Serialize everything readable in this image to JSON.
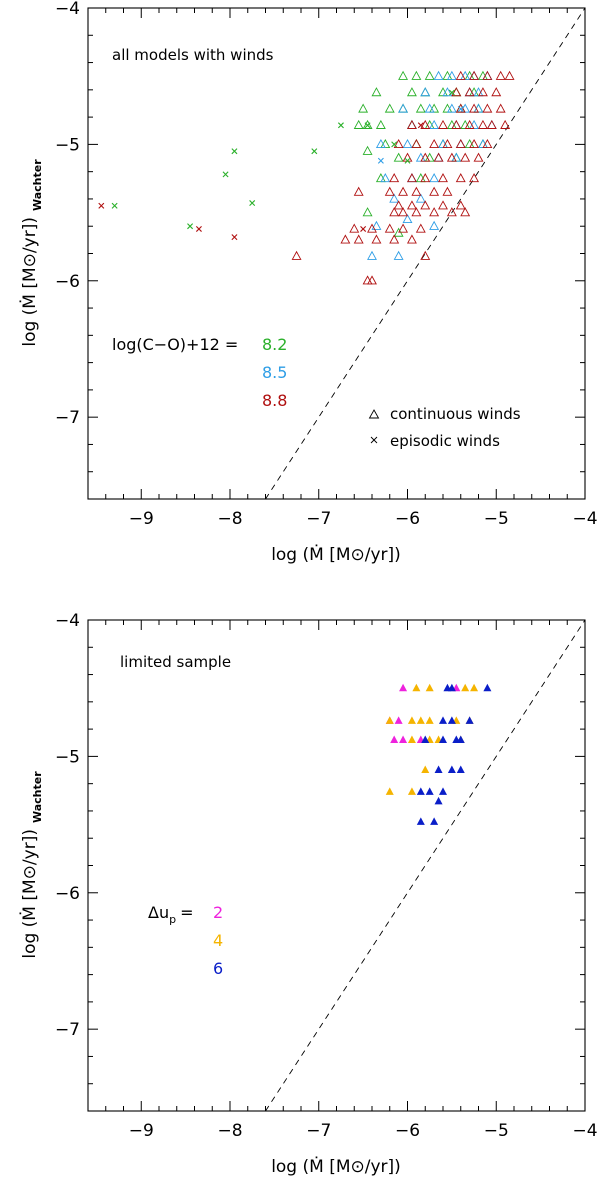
{
  "chart_data": [
    {
      "type": "scatter",
      "title": "all models with winds",
      "xlabel": "log (Ṁ [M⊙/yr])",
      "ylabel_main": "log (Ṁ [M⊙/yr])",
      "ylabel_sub": "Wachter",
      "xlim": [
        -9.6,
        -4
      ],
      "ylim": [
        -7.6,
        -4
      ],
      "xticks": [
        -9,
        -8,
        -7,
        -6,
        -5,
        -4
      ],
      "xtick_labels": [
        "−9",
        "−8",
        "−7",
        "−6",
        "−5",
        "−4"
      ],
      "yticks": [
        -7,
        -6,
        -5,
        -4
      ],
      "ytick_labels": [
        "−7",
        "−6",
        "−5",
        "−4"
      ],
      "diagonal": [
        [
          -7.6,
          -7.6
        ],
        [
          -4,
          -4
        ]
      ],
      "colors": {
        "8.2": "#2ab02a",
        "8.5": "#2f9ee6",
        "8.8": "#b01010"
      },
      "legend_title": "log(C−O)+12 =",
      "legend_values": [
        "8.2",
        "8.5",
        "8.8"
      ],
      "marker_legend": [
        "continuous winds",
        "episodic winds"
      ],
      "series": [
        {
          "name": "8.2",
          "marker": "open-triangle",
          "x": [
            -6.05,
            -5.9,
            -5.75,
            -5.55,
            -5.3,
            -5.15,
            -6.35,
            -5.95,
            -5.8,
            -5.6,
            -5.45,
            -5.25,
            -6.5,
            -6.2,
            -6.05,
            -5.85,
            -5.7,
            -5.55,
            -5.4,
            -5.2,
            -6.45,
            -6.3,
            -5.95,
            -5.75,
            -5.5,
            -5.35,
            -6.55,
            -6.25,
            -5.9,
            -5.6,
            -5.3,
            -5.15,
            -6.45,
            -6.1,
            -5.75,
            -5.45,
            -6.3,
            -5.85,
            -6.45,
            -6.1
          ],
          "y": [
            -4.5,
            -4.5,
            -4.5,
            -4.5,
            -4.5,
            -4.5,
            -4.62,
            -4.62,
            -4.62,
            -4.62,
            -4.62,
            -4.62,
            -4.74,
            -4.74,
            -4.74,
            -4.74,
            -4.74,
            -4.74,
            -4.74,
            -4.74,
            -4.86,
            -4.86,
            -4.86,
            -4.86,
            -4.86,
            -4.86,
            -4.86,
            -5.0,
            -5.0,
            -5.0,
            -5.0,
            -5.0,
            -5.05,
            -5.1,
            -5.1,
            -5.1,
            -5.25,
            -5.25,
            -5.5,
            -5.65
          ]
        },
        {
          "name": "8.5",
          "marker": "open-triangle",
          "x": [
            -5.65,
            -5.5,
            -5.35,
            -5.25,
            -5.1,
            -5.8,
            -5.55,
            -5.3,
            -5.2,
            -6.05,
            -5.75,
            -5.5,
            -5.35,
            -5.2,
            -5.95,
            -5.7,
            -5.45,
            -5.25,
            -5.05,
            -6.3,
            -6.0,
            -5.6,
            -5.4,
            -5.15,
            -5.85,
            -5.65,
            -5.45,
            -6.25,
            -5.95,
            -5.7,
            -6.15,
            -5.85,
            -6.0,
            -6.35,
            -5.7,
            -6.4,
            -6.1
          ],
          "y": [
            -4.5,
            -4.5,
            -4.5,
            -4.5,
            -4.5,
            -4.62,
            -4.62,
            -4.62,
            -4.62,
            -4.74,
            -4.74,
            -4.74,
            -4.74,
            -4.74,
            -4.86,
            -4.86,
            -4.86,
            -4.86,
            -4.86,
            -5.0,
            -5.0,
            -5.0,
            -5.0,
            -5.0,
            -5.1,
            -5.1,
            -5.1,
            -5.25,
            -5.25,
            -5.25,
            -5.4,
            -5.4,
            -5.55,
            -5.6,
            -5.6,
            -5.82,
            -5.82
          ]
        },
        {
          "name": "8.8",
          "marker": "open-triangle",
          "x": [
            -5.4,
            -5.25,
            -5.1,
            -4.95,
            -4.85,
            -5.45,
            -5.3,
            -5.15,
            -5.0,
            -5.4,
            -5.25,
            -5.1,
            -4.95,
            -5.95,
            -5.8,
            -5.6,
            -5.45,
            -5.3,
            -5.15,
            -5.05,
            -4.9,
            -6.1,
            -5.9,
            -5.7,
            -5.55,
            -5.4,
            -5.25,
            -5.1,
            -6.0,
            -5.8,
            -5.65,
            -5.5,
            -5.35,
            -5.2,
            -6.15,
            -5.95,
            -5.8,
            -5.6,
            -5.4,
            -5.25,
            -6.2,
            -6.05,
            -5.9,
            -5.7,
            -5.55,
            -6.55,
            -6.1,
            -5.95,
            -5.8,
            -5.6,
            -5.4,
            -6.15,
            -6.05,
            -5.9,
            -5.7,
            -5.5,
            -5.35,
            -6.6,
            -6.4,
            -6.2,
            -6.05,
            -5.85,
            -6.7,
            -6.55,
            -6.35,
            -6.15,
            -5.95,
            -5.8,
            -7.25,
            -6.45,
            -6.4
          ],
          "y": [
            -4.5,
            -4.5,
            -4.5,
            -4.5,
            -4.5,
            -4.62,
            -4.62,
            -4.62,
            -4.62,
            -4.74,
            -4.74,
            -4.74,
            -4.74,
            -4.86,
            -4.86,
            -4.86,
            -4.86,
            -4.86,
            -4.86,
            -4.86,
            -4.86,
            -5.0,
            -5.0,
            -5.0,
            -5.0,
            -5.0,
            -5.0,
            -5.0,
            -5.1,
            -5.1,
            -5.1,
            -5.1,
            -5.1,
            -5.1,
            -5.25,
            -5.25,
            -5.25,
            -5.25,
            -5.25,
            -5.25,
            -5.35,
            -5.35,
            -5.35,
            -5.35,
            -5.35,
            -5.35,
            -5.45,
            -5.45,
            -5.45,
            -5.45,
            -5.45,
            -5.5,
            -5.5,
            -5.5,
            -5.5,
            -5.5,
            -5.5,
            -5.62,
            -5.62,
            -5.62,
            -5.62,
            -5.62,
            -5.7,
            -5.7,
            -5.7,
            -5.7,
            -5.7,
            -5.82,
            -5.82,
            -6.0,
            -6.0
          ]
        },
        {
          "name": "8.2 episodic",
          "marker": "cross",
          "x": [
            -9.3,
            -8.45,
            -7.95,
            -8.05,
            -7.75,
            -7.05,
            -6.75,
            -6.15,
            -5.5,
            -6.0,
            -6.45
          ],
          "y": [
            -5.45,
            -5.6,
            -5.05,
            -5.22,
            -5.43,
            -5.05,
            -4.86,
            -5.0,
            -4.62,
            -5.12,
            -4.86
          ]
        },
        {
          "name": "8.5 episodic",
          "marker": "cross",
          "x": [
            -5.4,
            -6.3
          ],
          "y": [
            -4.74,
            -5.12
          ]
        },
        {
          "name": "8.8 episodic",
          "marker": "cross",
          "x": [
            -9.45,
            -8.35,
            -7.95,
            -6.5,
            -5.85
          ],
          "y": [
            -5.45,
            -5.62,
            -5.68,
            -5.62,
            -4.86
          ]
        }
      ]
    },
    {
      "type": "scatter",
      "title": "limited sample",
      "xlabel": "log (Ṁ [M⊙/yr])",
      "ylabel_main": "log (Ṁ [M⊙/yr])",
      "ylabel_sub": "Wachter",
      "xlim": [
        -9.6,
        -4
      ],
      "ylim": [
        -7.6,
        -4
      ],
      "xticks": [
        -9,
        -8,
        -7,
        -6,
        -5,
        -4
      ],
      "xtick_labels": [
        "−9",
        "−8",
        "−7",
        "−6",
        "−5",
        "−4"
      ],
      "yticks": [
        -7,
        -6,
        -5,
        -4
      ],
      "ytick_labels": [
        "−7",
        "−6",
        "−5",
        "−4"
      ],
      "diagonal": [
        [
          -7.6,
          -7.6
        ],
        [
          -4,
          -4
        ]
      ],
      "colors": {
        "2": "#ee22dd",
        "4": "#f5b400",
        "6": "#0a1ec8"
      },
      "legend_title": "Δu",
      "legend_sub": "p",
      "legend_values": [
        "2",
        "4",
        "6"
      ],
      "series": [
        {
          "name": "Δu_p = 2",
          "marker": "filled-triangle",
          "x": [
            -6.05,
            -5.45,
            -6.2,
            -6.1,
            -6.15,
            -6.05,
            -5.85
          ],
          "y": [
            -4.5,
            -4.5,
            -4.74,
            -4.74,
            -4.88,
            -4.88,
            -4.88
          ]
        },
        {
          "name": "Δu_p = 4",
          "marker": "filled-triangle",
          "x": [
            -5.9,
            -5.75,
            -5.35,
            -5.25,
            -6.2,
            -5.95,
            -5.85,
            -5.75,
            -5.45,
            -5.3,
            -5.95,
            -5.75,
            -5.65,
            -5.4,
            -5.8,
            -6.2,
            -5.95
          ],
          "y": [
            -4.5,
            -4.5,
            -4.5,
            -4.5,
            -4.74,
            -4.74,
            -4.74,
            -4.74,
            -4.74,
            -4.74,
            -4.88,
            -4.88,
            -4.88,
            -4.88,
            -5.1,
            -5.26,
            -5.26
          ]
        },
        {
          "name": "Δu_p = 6",
          "marker": "filled-triangle",
          "x": [
            -5.55,
            -5.5,
            -5.1,
            -5.6,
            -5.5,
            -5.3,
            -5.8,
            -5.6,
            -5.45,
            -5.4,
            -5.65,
            -5.5,
            -5.4,
            -5.75,
            -5.85,
            -5.65,
            -5.85,
            -5.7,
            -5.6
          ],
          "y": [
            -4.5,
            -4.5,
            -4.5,
            -4.74,
            -4.74,
            -4.74,
            -4.88,
            -4.88,
            -4.88,
            -4.88,
            -5.1,
            -5.1,
            -5.1,
            -5.26,
            -5.26,
            -5.33,
            -5.48,
            -5.48,
            -5.26
          ]
        }
      ]
    }
  ]
}
